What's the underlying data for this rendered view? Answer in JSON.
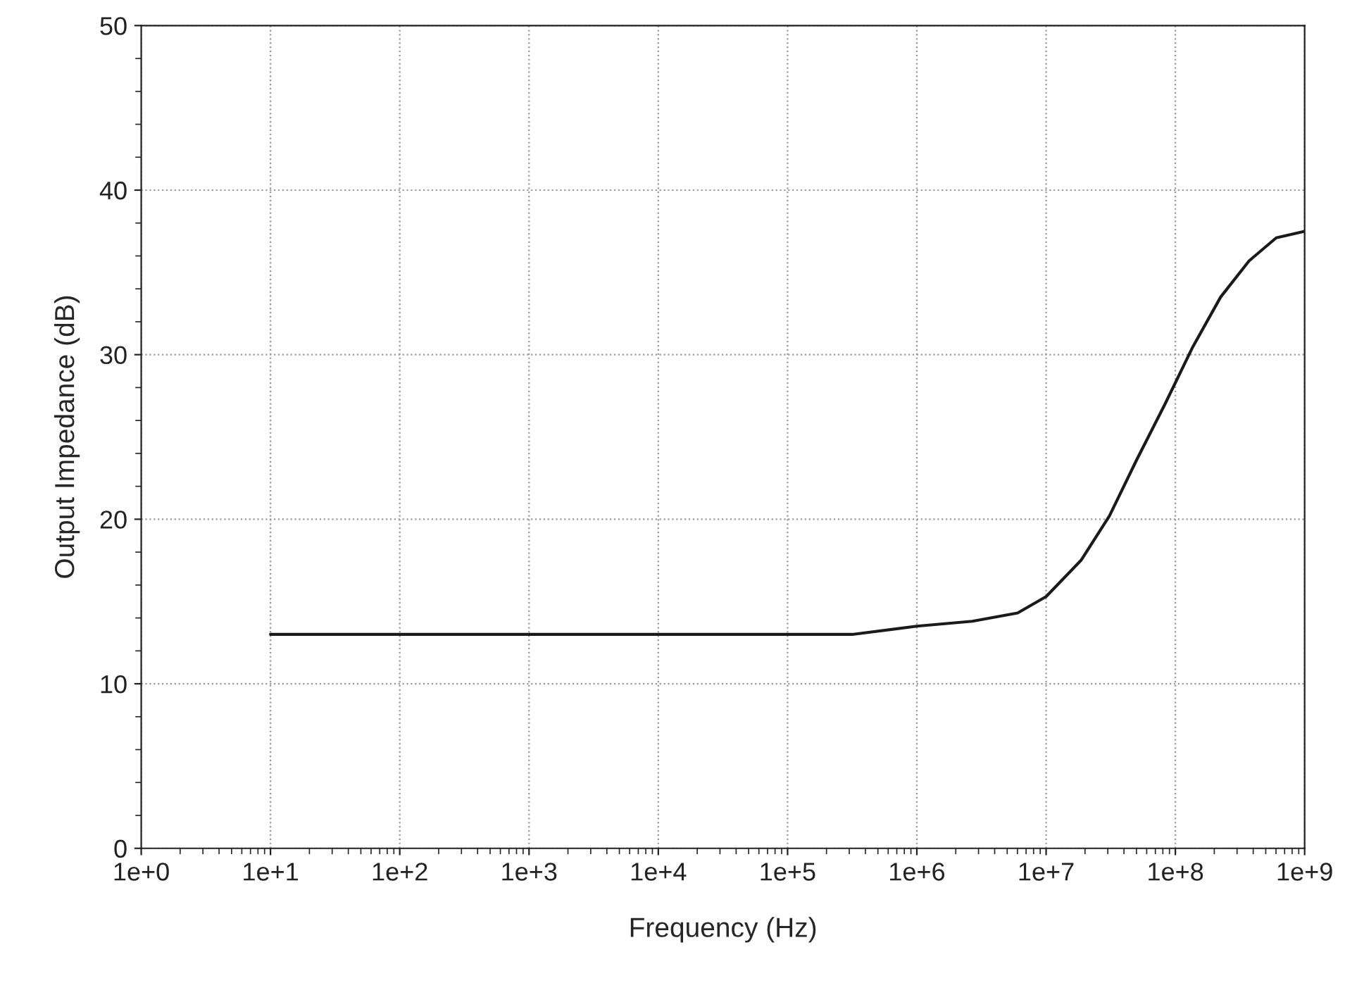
{
  "chart_data": {
    "type": "line",
    "xlabel": "Frequency (Hz)",
    "ylabel": "Output Impedance (dB)",
    "log": "x",
    "grid": true,
    "legend": false,
    "x": [
      10,
      100,
      1000,
      10000,
      100000,
      316228,
      1000000,
      2691535,
      6025596,
      10000000,
      18620871,
      30902954,
      50118723,
      83176377,
      134896288,
      223872114,
      371535229,
      602559586,
      1000000000
    ],
    "series": [
      {
        "color": "#1a1a1a",
        "values": [
          13.0,
          13.0,
          13.0,
          13.0,
          13.0,
          13.0,
          13.5,
          13.8,
          14.3,
          15.3,
          17.5,
          20.2,
          23.6,
          27.0,
          30.4,
          33.5,
          35.7,
          37.1,
          37.5
        ]
      }
    ],
    "xlim": [
      1,
      1000000000
    ],
    "xticks": [
      {
        "value": 1,
        "label": "1e+0"
      },
      {
        "value": 10,
        "label": "1e+1"
      },
      {
        "value": 100,
        "label": "1e+2"
      },
      {
        "value": 1000,
        "label": "1e+3"
      },
      {
        "value": 10000,
        "label": "1e+4"
      },
      {
        "value": 100000,
        "label": "1e+5"
      },
      {
        "value": 1000000,
        "label": "1e+6"
      },
      {
        "value": 10000000,
        "label": "1e+7"
      },
      {
        "value": 100000000,
        "label": "1e+8"
      },
      {
        "value": 1000000000,
        "label": "1e+9"
      }
    ],
    "ylim": [
      0,
      50
    ],
    "yticks": [
      0,
      10,
      20,
      30,
      40,
      50
    ]
  }
}
